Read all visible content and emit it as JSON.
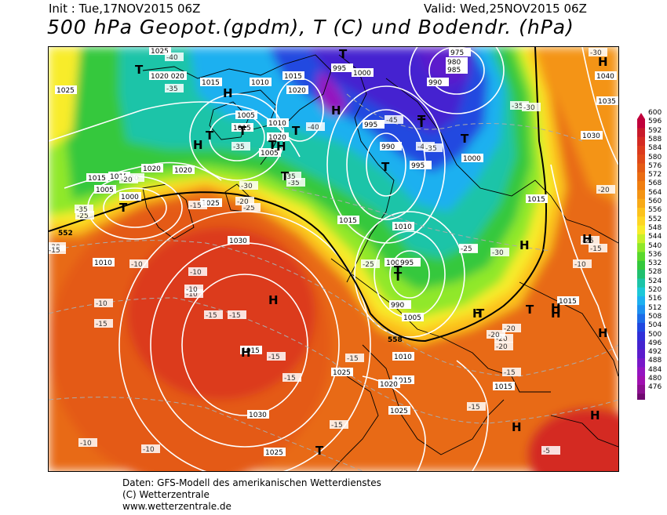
{
  "header": {
    "init": "Init : Tue,17NOV2015 06Z",
    "valid": "Valid: Wed,25NOV2015 06Z",
    "title": "500 hPa Geopot.(gpdm), T (C) und Bodendr. (hPa)"
  },
  "credits": {
    "line1": "Daten: GFS-Modell des amerikanischen Wetterdienstes",
    "line2": "(C) Wetterzentrale",
    "line3": "www.wetterzentrale.de"
  },
  "legend": {
    "values": [
      "600",
      "596",
      "592",
      "588",
      "584",
      "580",
      "576",
      "572",
      "568",
      "564",
      "560",
      "556",
      "552",
      "548",
      "544",
      "540",
      "536",
      "532",
      "528",
      "524",
      "520",
      "516",
      "512",
      "508",
      "504",
      "500",
      "496",
      "492",
      "488",
      "484",
      "480",
      "476"
    ],
    "colors": [
      "#c0003a",
      "#c81a2a",
      "#d42a22",
      "#dc3a1c",
      "#e04818",
      "#e45a14",
      "#ea6c12",
      "#f07e10",
      "#f49414",
      "#f8aa18",
      "#fcc21c",
      "#fed624",
      "#f8ec2a",
      "#c8f02a",
      "#90e82a",
      "#5ad82c",
      "#34c83c",
      "#20c070",
      "#1cc4a8",
      "#1cc8d8",
      "#1cb0f0",
      "#1c90f0",
      "#1c6ce8",
      "#2048e0",
      "#3030d8",
      "#4424d0",
      "#5c1ccc",
      "#7818c8",
      "#9414c0",
      "#a010b0",
      "#8c1090",
      "#700a70"
    ]
  },
  "map": {
    "pressure_labels": [
      "1025",
      "1020",
      "1025",
      "1020",
      "1015",
      "1010",
      "1015",
      "1020",
      "1005",
      "1010",
      "1015",
      "1020",
      "1005",
      "995",
      "1000",
      "975",
      "980",
      "985",
      "990",
      "1000",
      "995",
      "990",
      "995",
      "1015",
      "1020",
      "1020",
      "1015",
      "1005",
      "1000",
      "1025",
      "1010",
      "1015",
      "1030",
      "1010",
      "1000",
      "995",
      "990",
      "1005",
      "1010",
      "1015",
      "1015",
      "1025",
      "1020",
      "1025",
      "1015",
      "1030",
      "1025",
      "1040",
      "1035",
      "1030",
      "1015",
      "1015"
    ],
    "temp_labels": [
      "-40",
      "-35",
      "-35",
      "-30",
      "-35",
      "-40",
      "-45",
      "-40",
      "-35",
      "-35",
      "-30",
      "-35",
      "-20",
      "-25",
      "-35",
      "-30",
      "-20",
      "-15",
      "-25",
      "-15",
      "-10",
      "-10",
      "-10",
      "-10",
      "-15",
      "-10",
      "-15",
      "-15",
      "-15",
      "-15",
      "-20",
      "-25",
      "-20",
      "-25",
      "-20",
      "-15",
      "-30",
      "-25",
      "-20",
      "-20",
      "-15",
      "-10",
      "-10",
      "-5",
      "-30",
      "-25",
      "-20",
      "-15",
      "-10",
      "-15",
      "-15"
    ],
    "high_marker": "H",
    "low_marker": "T",
    "h_line_552": "552",
    "h_line_558": "558"
  }
}
